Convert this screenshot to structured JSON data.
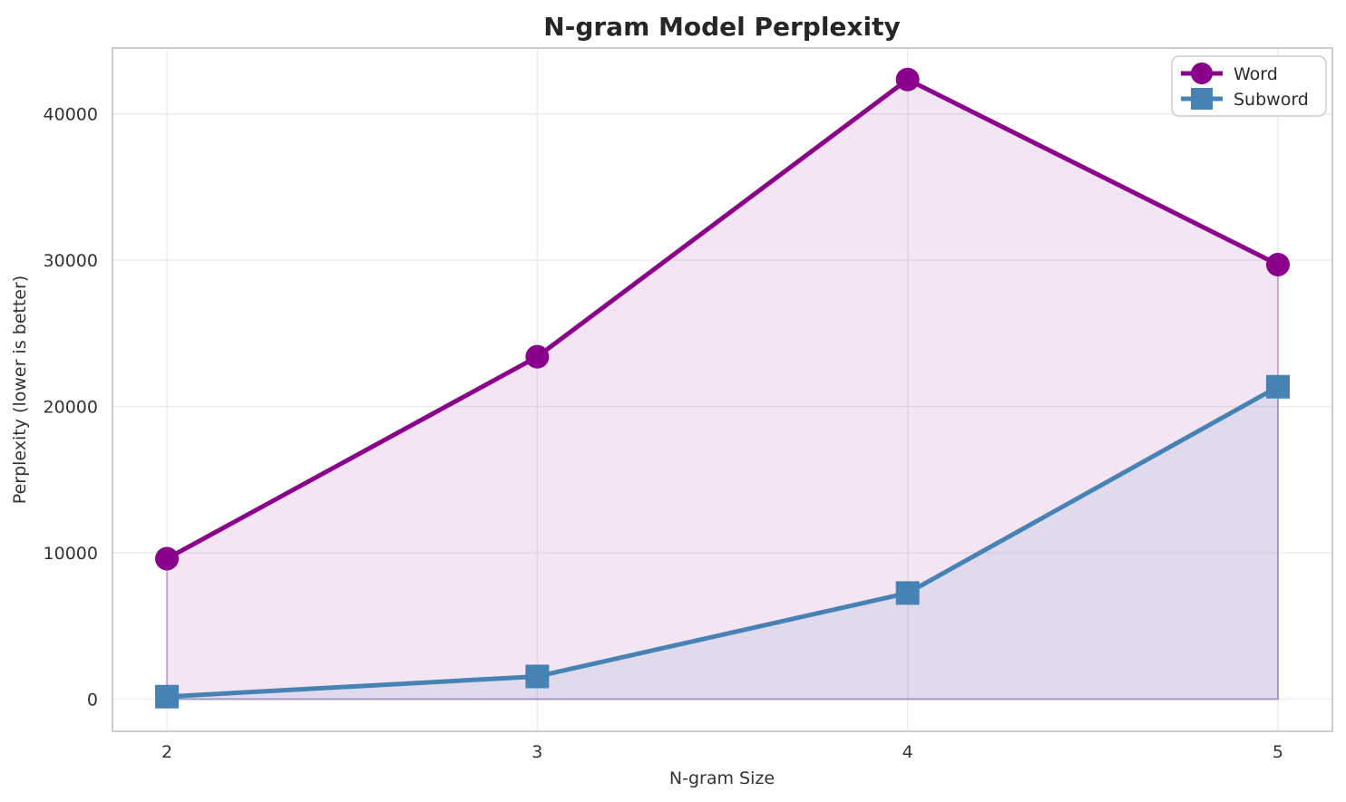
{
  "chart_data": {
    "type": "line",
    "title": "N-gram Model Perplexity",
    "xlabel": "N-gram Size",
    "ylabel": "Perplexity (lower is better)",
    "x": [
      2,
      3,
      4,
      5
    ],
    "series": [
      {
        "name": "Word",
        "values": [
          9600,
          23400,
          42350,
          29700
        ],
        "color": "#8B008B",
        "marker": "circle",
        "fill_under": true,
        "fill_alpha": 0.1
      },
      {
        "name": "Subword",
        "values": [
          170,
          1550,
          7250,
          21350
        ],
        "color": "#4682B4",
        "marker": "square",
        "fill_under": true,
        "fill_alpha": 0.1
      }
    ],
    "xticks": [
      2,
      3,
      4,
      5
    ],
    "yticks": [
      0,
      10000,
      20000,
      30000,
      40000
    ],
    "xlim": [
      1.853,
      5.147
    ],
    "ylim": [
      -2200,
      44500
    ],
    "grid": true,
    "legend_position": "upper right"
  }
}
